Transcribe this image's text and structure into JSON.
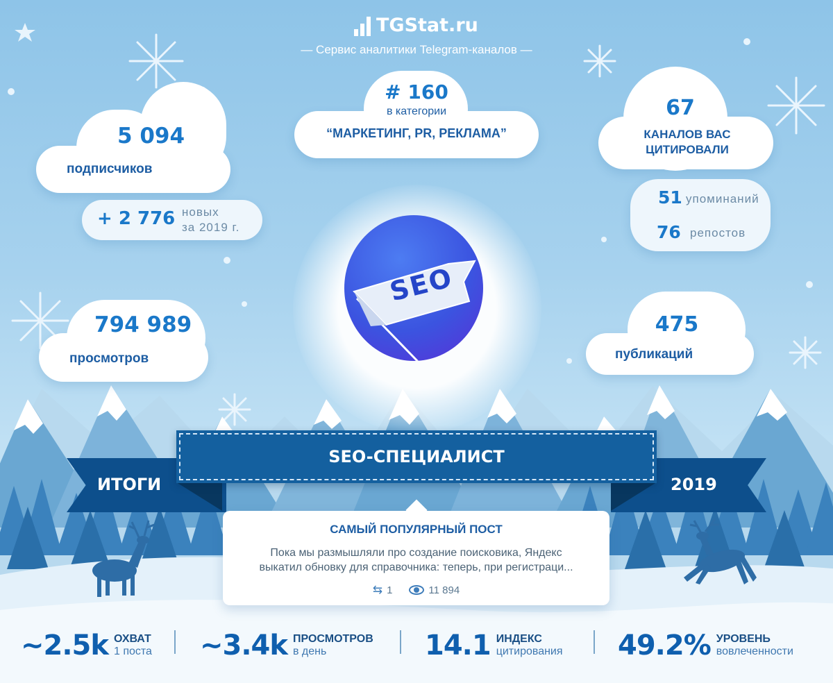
{
  "brand": {
    "name": "TGStat.ru",
    "tagline": "— Сервис аналитики Telegram-каналов —"
  },
  "subscribers": {
    "value": "5 094",
    "label": "подписчиков"
  },
  "growth": {
    "value": "+ 2 776",
    "line1": "новых",
    "line2": "за 2019 г."
  },
  "rank": {
    "value": "# 160",
    "prefix": "в категории",
    "category": "“МАРКЕТИНГ, PR, РЕКЛАМА”"
  },
  "citations": {
    "value": "67",
    "line1": "КАНАЛОВ ВАС",
    "line2": "ЦИТИРОВАЛИ"
  },
  "mentions": {
    "value": "51",
    "label": "упоминаний"
  },
  "reposts": {
    "value": "76",
    "label": "репостов"
  },
  "views": {
    "value": "794 989",
    "label": "просмотров"
  },
  "publications": {
    "value": "475",
    "label": "публикаций"
  },
  "logo": {
    "text": "SEO"
  },
  "banner": {
    "left": "ИТОГИ",
    "title": "SEO-СПЕЦИАЛИСТ",
    "right": "2019"
  },
  "popular_post": {
    "heading": "САМЫЙ ПОПУЛЯРНЫЙ ПОСТ",
    "text_line1": "Пока мы размышляли про создание поисковика, Яндекс",
    "text_line2": "выкатил обновку для справочника: теперь, при регистраци...",
    "reposts": "1",
    "views": "11 894",
    "repost_icon": "repost-icon",
    "views_icon": "eye-icon"
  },
  "stats": [
    {
      "value": "~2.5k",
      "title": "ОХВАТ",
      "sub": "1 поста"
    },
    {
      "value": "~3.4k",
      "title": "ПРОСМОТРОВ",
      "sub": "в день"
    },
    {
      "value": "14.1",
      "title": "ИНДЕКС",
      "sub": "цитирования"
    },
    {
      "value": "49.2%",
      "title": "УРОВЕНЬ",
      "sub": "вовлеченности"
    }
  ],
  "colors": {
    "accent": "#1a78c9",
    "banner": "#0d4f8c",
    "banner_center": "#14609f",
    "sky": "#8ec4e8"
  }
}
